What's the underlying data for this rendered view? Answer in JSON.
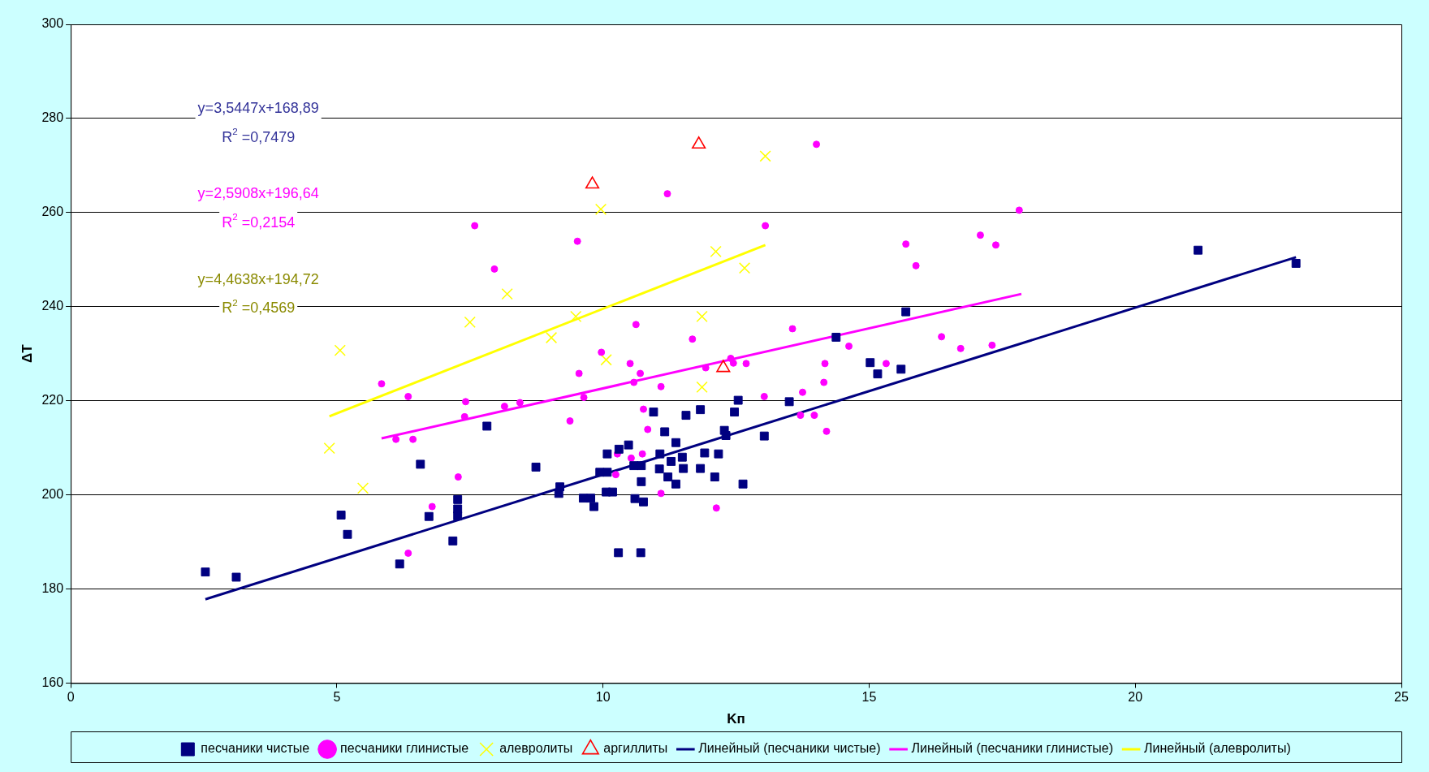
{
  "chart_data": {
    "type": "scatter",
    "xlabel": "Kп",
    "ylabel": "ΔT",
    "xlim": [
      0,
      25
    ],
    "xticks": [
      0,
      5,
      10,
      15,
      20,
      25
    ],
    "ylim": [
      160,
      300
    ],
    "yticks": [
      160,
      180,
      200,
      220,
      240,
      260,
      280,
      300
    ],
    "grid": "y",
    "legend": "bottom",
    "annotations": [
      "y=3,5447x+168,89",
      "R$^{2}$ =0,7479",
      "y=2,5908x+196,64",
      "R$^{2}$ =0,2154",
      "y=4,4638x+194,72",
      "R$^{2}$ =0,4569"
    ],
    "series": [
      {
        "name": "песчаники чистые",
        "color": "#000080",
        "marker": "square",
        "x": [
          2.53,
          3.11,
          5.08,
          5.2,
          6.18,
          6.57,
          6.73,
          7.18,
          7.27,
          7.27,
          7.27,
          7.82,
          8.74,
          9.17,
          9.19,
          9.63,
          9.77,
          9.83,
          9.94,
          10.08,
          10.08,
          10.29,
          10.06,
          10.18,
          10.3,
          10.48,
          10.71,
          10.58,
          10.72,
          10.6,
          10.76,
          10.72,
          10.95,
          11.07,
          11.06,
          11.16,
          11.22,
          11.28,
          11.37,
          11.37,
          11.49,
          11.51,
          11.56,
          11.83,
          11.83,
          11.91,
          12.1,
          12.17,
          12.28,
          12.31,
          12.47,
          12.54,
          12.63,
          13.03,
          13.5,
          14.38,
          15.02,
          15.16,
          15.6,
          15.69,
          21.18,
          23.02
        ],
        "values": [
          183.6,
          182.5,
          195.7,
          191.6,
          185.3,
          206.5,
          195.4,
          190.2,
          199,
          197,
          195.5,
          214.6,
          205.9,
          200.3,
          201.7,
          199.3,
          199.3,
          197.5,
          204.8,
          204.8,
          208.7,
          187.7,
          200.6,
          200.6,
          209.7,
          210.6,
          187.7,
          206.2,
          206.2,
          199.2,
          198.5,
          202.8,
          217.6,
          208.7,
          205.5,
          213.4,
          203.8,
          207.1,
          211.1,
          202.3,
          208,
          205.6,
          216.9,
          218.1,
          205.6,
          208.9,
          203.8,
          208.7,
          213.7,
          212.6,
          217.6,
          220.1,
          202.3,
          212.5,
          219.8,
          233.5,
          228.1,
          225.7,
          226.7,
          238.9,
          252,
          249.2
        ]
      },
      {
        "name": "песчаники глинистые",
        "color": "#ff00ff",
        "marker": "circle",
        "x": [
          5.84,
          6.11,
          6.43,
          6.34,
          6.34,
          6.79,
          7.28,
          7.42,
          7.4,
          7.59,
          7.96,
          8.15,
          8.44,
          9.38,
          9.52,
          9.55,
          9.64,
          9.97,
          10.27,
          10.24,
          10.51,
          10.53,
          10.74,
          10.62,
          10.7,
          10.58,
          10.76,
          10.84,
          11.09,
          11.09,
          11.21,
          11.68,
          11.93,
          12.13,
          12.4,
          12.45,
          12.69,
          13.03,
          13.05,
          13.56,
          13.71,
          13.75,
          13.97,
          14.01,
          14.15,
          14.17,
          14.2,
          14.62,
          15.32,
          15.69,
          15.88,
          16.36,
          16.72,
          17.31,
          17.09,
          17.38,
          17.82
        ],
        "values": [
          223.6,
          211.8,
          211.8,
          220.9,
          187.6,
          197.5,
          203.8,
          219.8,
          216.6,
          257.2,
          248,
          218.8,
          219.6,
          215.7,
          253.9,
          225.8,
          220.7,
          230.3,
          208.7,
          204.3,
          227.9,
          207.8,
          208.7,
          236.2,
          225.8,
          223.9,
          218.2,
          213.9,
          200.3,
          223,
          264,
          233.1,
          227,
          197.2,
          229,
          228,
          227.9,
          220.9,
          257.2,
          235.3,
          216.9,
          221.8,
          216.9,
          274.5,
          223.9,
          227.9,
          213.5,
          231.6,
          227.9,
          253.3,
          248.7,
          233.6,
          231.1,
          231.8,
          255.2,
          253.1,
          260.5
        ]
      },
      {
        "name": "алевролиты",
        "color": "#ffff00",
        "marker": "cross",
        "x": [
          4.86,
          5.06,
          5.49,
          7.5,
          8.2,
          9.03,
          9.49,
          9.96,
          10.06,
          11.86,
          11.86,
          12.12,
          12.66,
          13.05
        ],
        "values": [
          209.9,
          230.7,
          201.4,
          236.7,
          242.7,
          233.4,
          237.9,
          260.7,
          228.7,
          237.9,
          222.9,
          251.7,
          248.2,
          272
        ]
      },
      {
        "name": "аргиллиты",
        "color": "#ff0000",
        "marker": "triangle",
        "x": [
          9.8,
          11.8,
          12.26
        ],
        "values": [
          266,
          274.5,
          227
        ]
      },
      {
        "name": "Линейный (песчаники чистые)",
        "color": "#000080",
        "type": "line",
        "marker": "none",
        "x": [
          2.53,
          23.02
        ],
        "values": [
          177.8,
          250.5
        ]
      },
      {
        "name": "Линейный (песчаники глинистые)",
        "color": "#ff00ff",
        "type": "line",
        "marker": "none",
        "x": [
          5.84,
          17.86
        ],
        "values": [
          212,
          242.7
        ]
      },
      {
        "name": "Линейный (алевролиты)",
        "color": "#ffff00",
        "type": "line",
        "marker": "none",
        "x": [
          4.86,
          13.05
        ],
        "values": [
          216.7,
          253.1
        ]
      }
    ]
  }
}
